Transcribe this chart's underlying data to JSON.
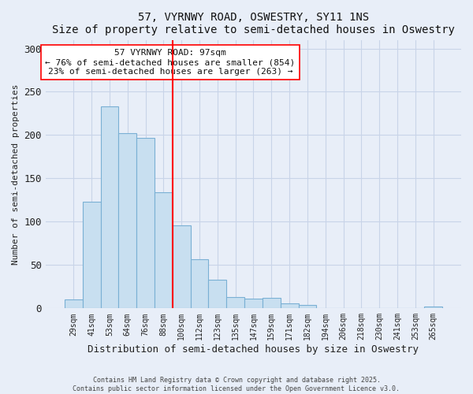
{
  "title": "57, VYRNWY ROAD, OSWESTRY, SY11 1NS",
  "subtitle": "Size of property relative to semi-detached houses in Oswestry",
  "xlabel": "Distribution of semi-detached houses by size in Oswestry",
  "ylabel": "Number of semi-detached properties",
  "bar_labels": [
    "29sqm",
    "41sqm",
    "53sqm",
    "64sqm",
    "76sqm",
    "88sqm",
    "100sqm",
    "112sqm",
    "123sqm",
    "135sqm",
    "147sqm",
    "159sqm",
    "171sqm",
    "182sqm",
    "194sqm",
    "206sqm",
    "218sqm",
    "230sqm",
    "241sqm",
    "253sqm",
    "265sqm"
  ],
  "bar_values": [
    10,
    123,
    233,
    202,
    197,
    134,
    96,
    57,
    33,
    13,
    11,
    12,
    6,
    4,
    0,
    0,
    0,
    0,
    0,
    0,
    2
  ],
  "bar_color": "#c8dff0",
  "bar_edge_color": "#7ab0d4",
  "vline_index": 6,
  "vline_color": "red",
  "ylim": [
    0,
    310
  ],
  "yticks": [
    0,
    50,
    100,
    150,
    200,
    250,
    300
  ],
  "annotation_title": "57 VYRNWY ROAD: 97sqm",
  "annotation_line1": "← 76% of semi-detached houses are smaller (854)",
  "annotation_line2": "23% of semi-detached houses are larger (263) →",
  "footer1": "Contains HM Land Registry data © Crown copyright and database right 2025.",
  "footer2": "Contains public sector information licensed under the Open Government Licence v3.0.",
  "bg_color": "#e8eef8",
  "grid_color": "#c8d4e8"
}
